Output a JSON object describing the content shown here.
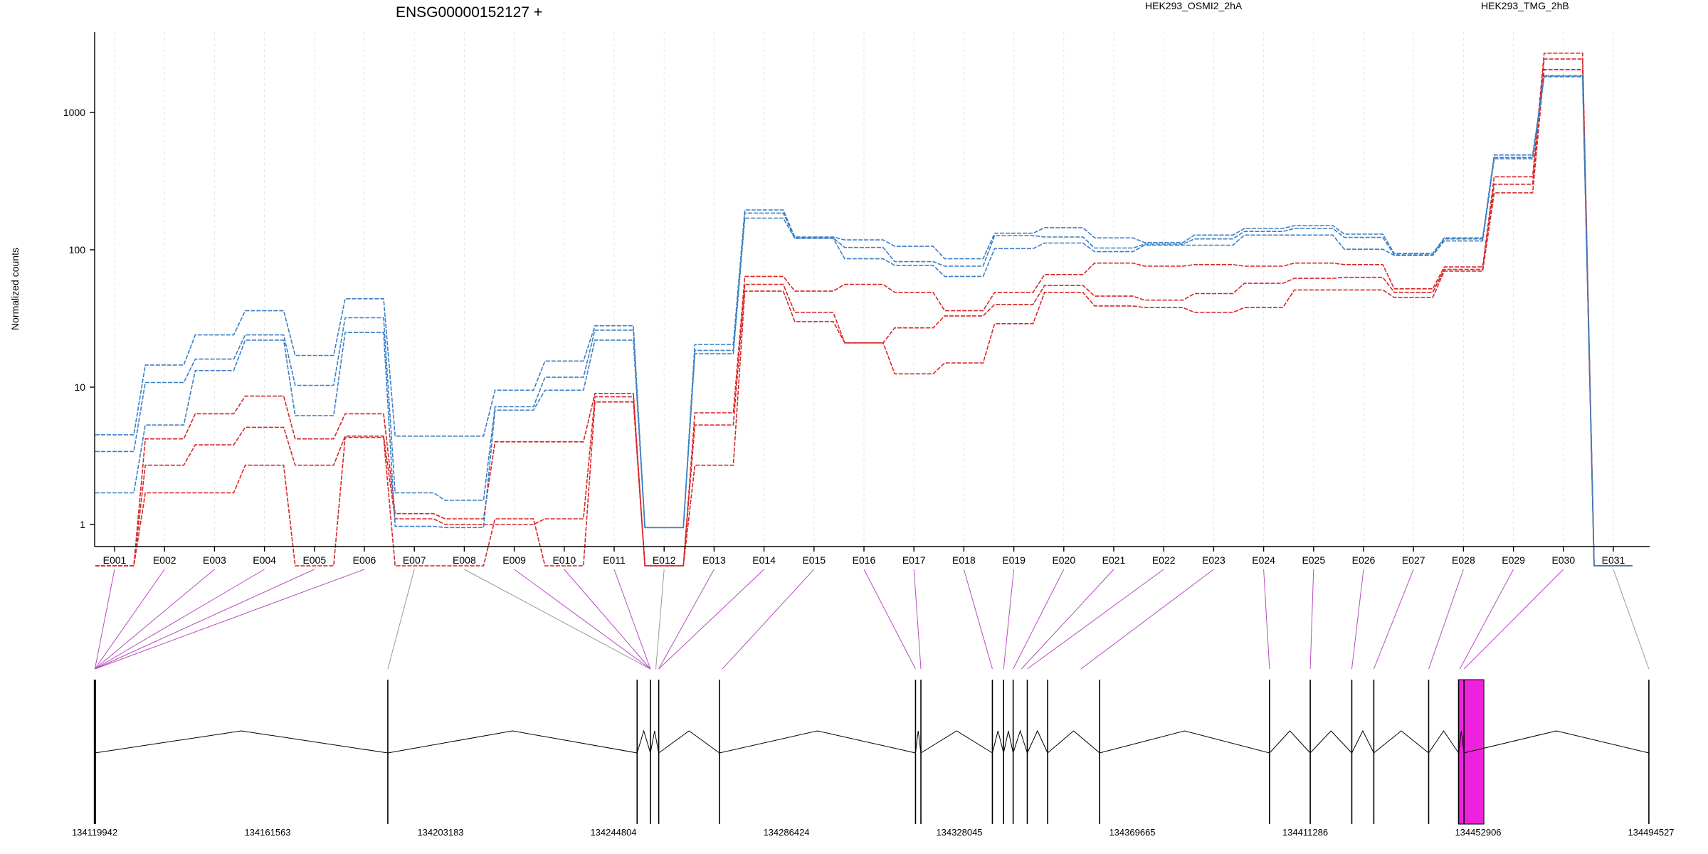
{
  "chart_data": {
    "type": "line",
    "title": "ENSG00000152127 +",
    "xlabel": "",
    "ylabel": "Normalized counts",
    "y_scale": "log10",
    "ylim": [
      0.5,
      3500
    ],
    "y_ticks": [
      1,
      10,
      100,
      1000
    ],
    "grid": "vertical dashed lines at exon bins",
    "legend_position": "top",
    "categories": [
      "E001",
      "E002",
      "E003",
      "E004",
      "E005",
      "E006",
      "E007",
      "E008",
      "E009",
      "E010",
      "E011",
      "E012",
      "E013",
      "E014",
      "E015",
      "E016",
      "E017",
      "E018",
      "E019",
      "E020",
      "E021",
      "E022",
      "E023",
      "E024",
      "E025",
      "E026",
      "E027",
      "E028",
      "E029",
      "E030",
      "E031"
    ],
    "groups": [
      {
        "name": "HEK293_OSMI2_2hA",
        "color": "#d62728"
      },
      {
        "name": "HEK293_TMG_2hB",
        "color": "#3b7fc4"
      }
    ],
    "series": [
      {
        "group": "HEK293_OSMI2_2hA",
        "values": [
          0.5,
          4.2,
          6.4,
          8.6,
          4.2,
          6.4,
          1.2,
          1.1,
          4,
          4,
          9,
          0.5,
          6.5,
          64,
          50,
          56,
          49,
          36,
          49,
          66,
          80,
          76,
          78,
          76,
          80,
          78,
          52,
          75,
          340,
          2700,
          0.5
        ]
      },
      {
        "group": "HEK293_OSMI2_2hA",
        "values": [
          0.5,
          2.7,
          3.8,
          5.1,
          2.7,
          4.4,
          1.1,
          1,
          1,
          1.1,
          8.5,
          0.5,
          5.3,
          56,
          35,
          21,
          27,
          33,
          40,
          55,
          46,
          43,
          48,
          57,
          62,
          63,
          49,
          72,
          300,
          2450,
          0.5
        ]
      },
      {
        "group": "HEK293_OSMI2_2hA",
        "values": [
          0.5,
          1.7,
          1.7,
          2.7,
          0.5,
          4.3,
          0.5,
          0.5,
          1.1,
          0.5,
          7.8,
          0.5,
          2.7,
          50,
          30,
          21,
          12.5,
          15,
          29,
          49,
          39,
          38,
          35,
          38,
          51,
          51,
          45,
          70,
          260,
          2050,
          0.5
        ]
      },
      {
        "group": "HEK293_TMG_2hB",
        "values": [
          4.5,
          14.5,
          24,
          36,
          17,
          44,
          4.4,
          4.4,
          9.5,
          15.5,
          28,
          0.95,
          20.5,
          195,
          124,
          118,
          106,
          86,
          132,
          145,
          122,
          113,
          128,
          143,
          150,
          130,
          94,
          122,
          490,
          1850,
          0.5
        ]
      },
      {
        "group": "HEK293_TMG_2hB",
        "values": [
          3.4,
          10.8,
          16,
          24,
          10.3,
          32,
          1.7,
          1.5,
          7.2,
          11.8,
          26,
          0.95,
          18.5,
          185,
          122,
          104,
          82,
          76,
          127,
          124,
          103,
          110,
          120,
          136,
          143,
          123,
          92,
          120,
          470,
          1830,
          0.5
        ]
      },
      {
        "group": "HEK293_TMG_2hB",
        "values": [
          1.7,
          5.3,
          13.2,
          22,
          6.2,
          25,
          0.97,
          0.95,
          6.8,
          9.5,
          22,
          0.95,
          17.5,
          170,
          121,
          86,
          77,
          64,
          102,
          112,
          97,
          108,
          108,
          128,
          128,
          101,
          91,
          116,
          460,
          1820,
          0.5
        ]
      }
    ],
    "gene_model": {
      "coordinate_labels": [
        "134119942",
        "134161563",
        "134203183",
        "134244804",
        "134286424",
        "134328045",
        "134369665",
        "134411286",
        "134452906",
        "134494527"
      ],
      "coordinate_range": [
        134119942,
        134494527
      ],
      "exon_positions": [
        134120000,
        134190500,
        134250500,
        134253700,
        134255700,
        134270300,
        134317500,
        134318800,
        134336000,
        134338700,
        134341000,
        134344400,
        134349300,
        134361800,
        134402700,
        134412500,
        134422500,
        134427800,
        134441000,
        134448200,
        134449500,
        134494000
      ],
      "highlighted_exon_range": [
        134448200,
        134454300
      ],
      "exon_color": "#ee22dd",
      "connector_colors": {
        "highlighted": "#b84cc0",
        "plain": "#999999"
      },
      "bin_links": [
        {
          "bin": "E001",
          "pos": 134120000,
          "highlight": true
        },
        {
          "bin": "E002",
          "pos": 134120000,
          "highlight": true
        },
        {
          "bin": "E003",
          "pos": 134120000,
          "highlight": true
        },
        {
          "bin": "E004",
          "pos": 134120000,
          "highlight": true
        },
        {
          "bin": "E005",
          "pos": 134120000,
          "highlight": true
        },
        {
          "bin": "E006",
          "pos": 134120000,
          "highlight": true
        },
        {
          "bin": "E007",
          "pos": 134190500,
          "highlight": false
        },
        {
          "bin": "E008",
          "pos": 134253700,
          "highlight": false
        },
        {
          "bin": "E009",
          "pos": 134253700,
          "highlight": true
        },
        {
          "bin": "E010",
          "pos": 134253700,
          "highlight": true
        },
        {
          "bin": "E011",
          "pos": 134253700,
          "highlight": true
        },
        {
          "bin": "E012",
          "pos": 134255000,
          "highlight": false
        },
        {
          "bin": "E013",
          "pos": 134255700,
          "highlight": true
        },
        {
          "bin": "E014",
          "pos": 134255700,
          "highlight": true
        },
        {
          "bin": "E015",
          "pos": 134271000,
          "highlight": true
        },
        {
          "bin": "E016",
          "pos": 134317500,
          "highlight": true
        },
        {
          "bin": "E017",
          "pos": 134318800,
          "highlight": true
        },
        {
          "bin": "E018",
          "pos": 134336000,
          "highlight": true
        },
        {
          "bin": "E019",
          "pos": 134338700,
          "highlight": true
        },
        {
          "bin": "E020",
          "pos": 134341000,
          "highlight": true
        },
        {
          "bin": "E021",
          "pos": 134343000,
          "highlight": true
        },
        {
          "bin": "E022",
          "pos": 134344400,
          "highlight": true
        },
        {
          "bin": "E023",
          "pos": 134357300,
          "highlight": true
        },
        {
          "bin": "E024",
          "pos": 134402700,
          "highlight": true
        },
        {
          "bin": "E025",
          "pos": 134412500,
          "highlight": true
        },
        {
          "bin": "E026",
          "pos": 134422500,
          "highlight": true
        },
        {
          "bin": "E027",
          "pos": 134427800,
          "highlight": true
        },
        {
          "bin": "E028",
          "pos": 134441000,
          "highlight": true
        },
        {
          "bin": "E029",
          "pos": 134448500,
          "highlight": true
        },
        {
          "bin": "E030",
          "pos": 134449500,
          "highlight": true
        },
        {
          "bin": "E031",
          "pos": 134494000,
          "highlight": false
        }
      ]
    }
  }
}
